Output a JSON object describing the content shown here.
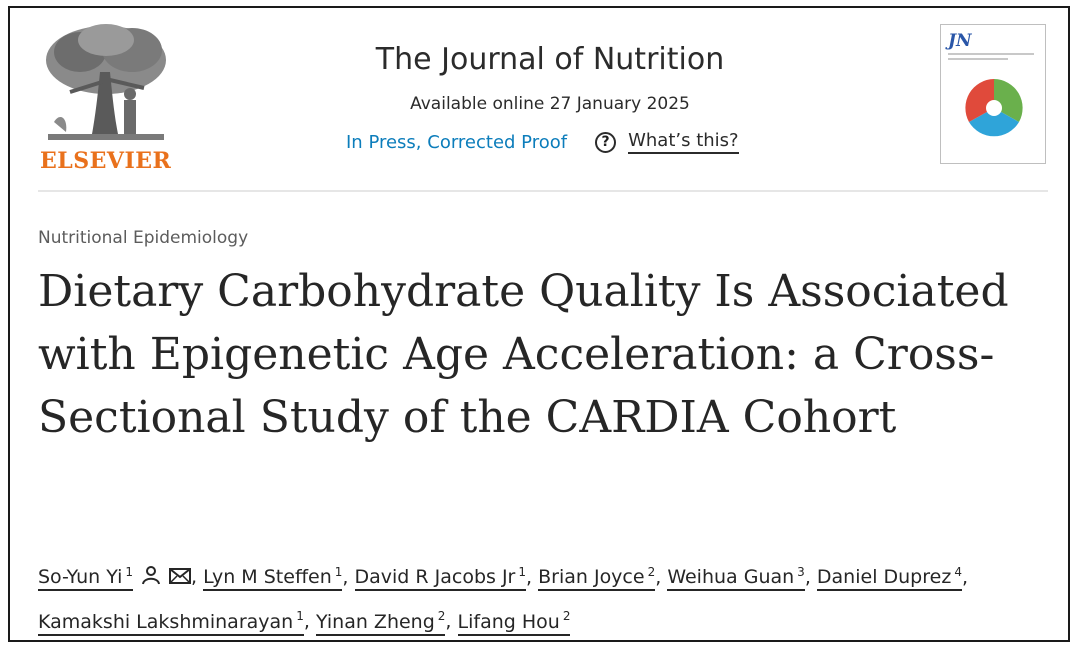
{
  "publisher": {
    "name": "ELSEVIER",
    "logo_icon": "elsevier-tree-icon",
    "name_color": "#e9711c"
  },
  "journal": {
    "title": "The Journal of Nutrition",
    "available_online": "Available online 27 January 2025",
    "status": "In Press, Corrected Proof",
    "status_color": "#0c7dbb",
    "help_icon_glyph": "?",
    "help_link": "What’s this?"
  },
  "cover": {
    "initials": "JN",
    "icon": "journal-cover-icon"
  },
  "article": {
    "section": "Nutritional Epidemiology",
    "title": "Dietary Carbohydrate Quality Is Associated with Epigenetic Age Acceleration: a Cross-Sectional Study of the CARDIA Cohort"
  },
  "authors": [
    {
      "name": "So-Yun Yi",
      "aff": "1",
      "icons": [
        "person-icon",
        "mail-icon"
      ]
    },
    {
      "name": "Lyn M Steffen",
      "aff": "1"
    },
    {
      "name": "David R Jacobs Jr",
      "aff": "1"
    },
    {
      "name": "Brian Joyce",
      "aff": "2"
    },
    {
      "name": "Weihua Guan",
      "aff": "3"
    },
    {
      "name": "Daniel Duprez",
      "aff": "4"
    },
    {
      "name": "Kamakshi Lakshminarayan",
      "aff": "1"
    },
    {
      "name": "Yinan Zheng",
      "aff": "2"
    },
    {
      "name": "Lifang Hou",
      "aff": "2"
    }
  ],
  "separator": ","
}
